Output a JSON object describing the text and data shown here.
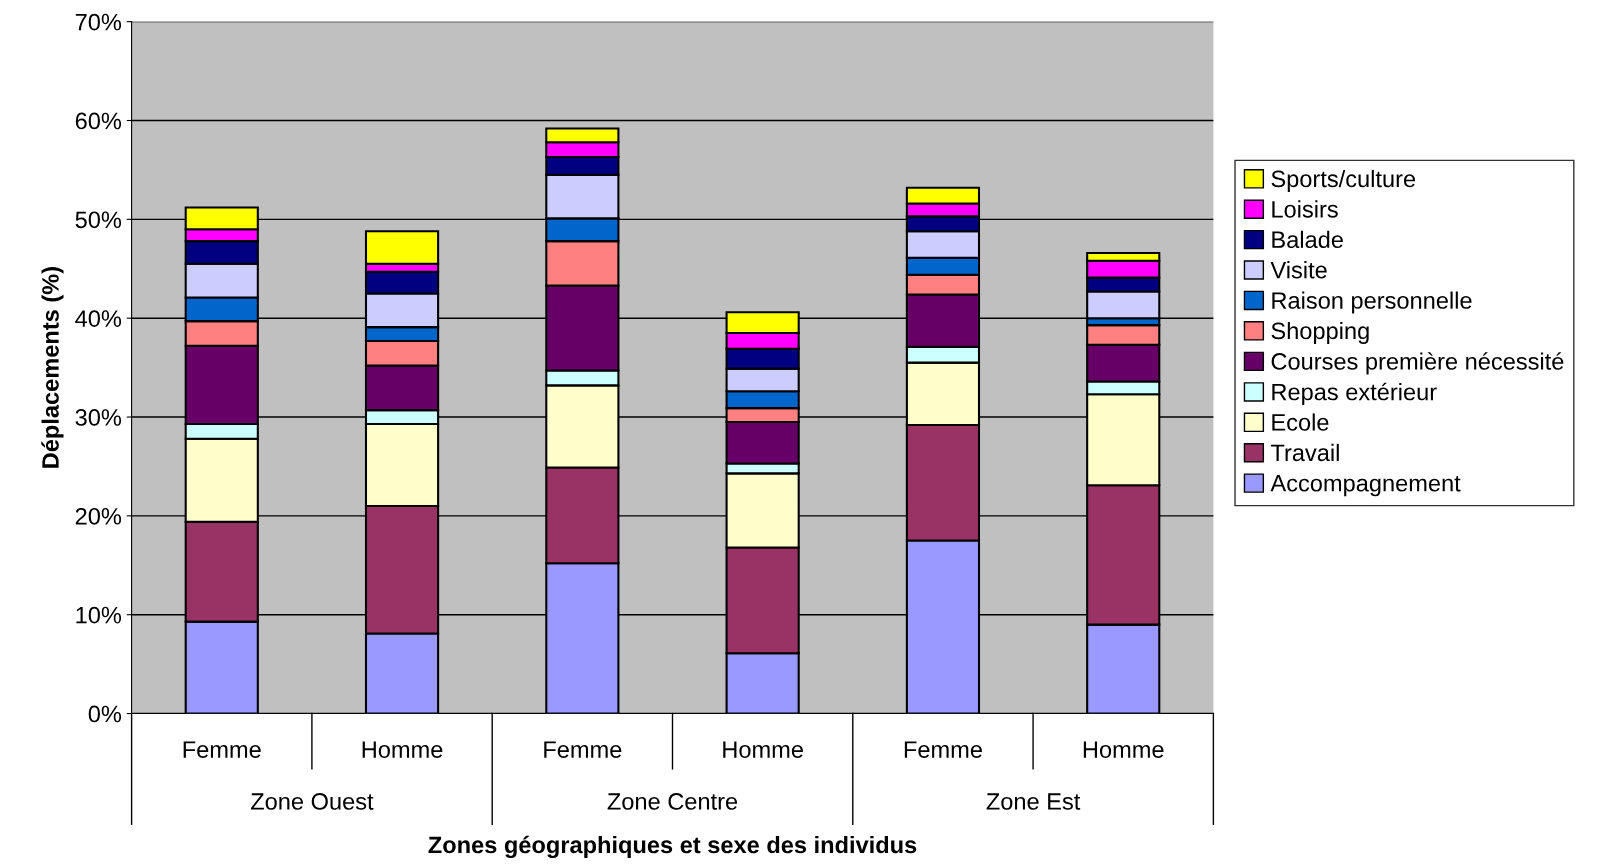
{
  "chart_data": {
    "type": "bar",
    "stacked": true,
    "xlabel": "Zones géographiques et sexe des individus",
    "ylabel": "Déplacements (%)",
    "categories": [
      "Femme",
      "Homme",
      "Femme",
      "Homme",
      "Femme",
      "Homme"
    ],
    "annotations": [
      "Zone Ouest",
      "Zone Centre",
      "Zone Est"
    ],
    "series": [
      {
        "name": "Accompagnement",
        "color": "#9999ff",
        "values": [
          9.3,
          8.1,
          15.2,
          6.1,
          17.5,
          9.0
        ]
      },
      {
        "name": "Travail",
        "color": "#993366",
        "values": [
          10.1,
          12.9,
          9.7,
          10.7,
          11.7,
          14.1
        ]
      },
      {
        "name": "Ecole",
        "color": "#ffffcc",
        "values": [
          8.4,
          8.3,
          8.3,
          7.5,
          6.3,
          9.2
        ]
      },
      {
        "name": "Repas extérieur",
        "color": "#ccffff",
        "values": [
          1.5,
          1.4,
          1.5,
          1.0,
          1.6,
          1.3
        ]
      },
      {
        "name": "Courses première nécessité",
        "color": "#660066",
        "values": [
          7.9,
          4.5,
          8.6,
          4.2,
          5.3,
          3.7
        ]
      },
      {
        "name": "Shopping",
        "color": "#ff8080",
        "values": [
          2.5,
          2.5,
          4.5,
          1.4,
          2.0,
          2.0
        ]
      },
      {
        "name": "Raison personnelle",
        "color": "#0066cc",
        "values": [
          2.4,
          1.4,
          2.3,
          1.7,
          1.7,
          0.7
        ]
      },
      {
        "name": "Visite",
        "color": "#ccccff",
        "values": [
          3.4,
          3.4,
          4.4,
          2.3,
          2.7,
          2.7
        ]
      },
      {
        "name": "Balade",
        "color": "#000080",
        "values": [
          2.3,
          2.2,
          1.8,
          2.0,
          1.5,
          1.4
        ]
      },
      {
        "name": "Loisirs",
        "color": "#ff00ff",
        "values": [
          1.2,
          0.8,
          1.5,
          1.6,
          1.3,
          1.7
        ]
      },
      {
        "name": "Sports/culture",
        "color": "#ffff00",
        "values": [
          2.2,
          3.3,
          1.4,
          2.1,
          1.6,
          0.8
        ]
      }
    ],
    "ylim": [
      0,
      70
    ],
    "yticks": [
      {
        "value": 0,
        "label": "0%"
      },
      {
        "value": 10,
        "label": "10%"
      },
      {
        "value": 20,
        "label": "20%"
      },
      {
        "value": 30,
        "label": "30%"
      },
      {
        "value": 40,
        "label": "40%"
      },
      {
        "value": 50,
        "label": "50%"
      },
      {
        "value": 60,
        "label": "60%"
      },
      {
        "value": 70,
        "label": "70%"
      }
    ],
    "grid": "y",
    "legend": "right"
  }
}
